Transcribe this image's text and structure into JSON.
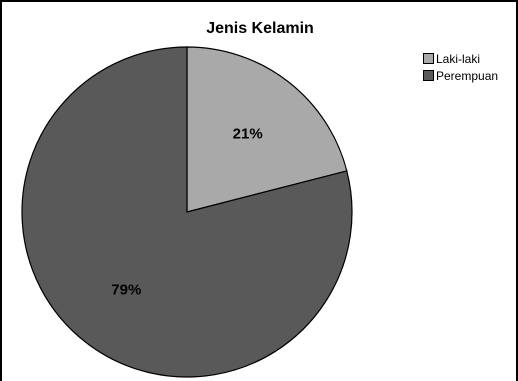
{
  "chart_data": {
    "type": "pie",
    "title": "Jenis Kelamin",
    "categories": [
      "Laki-laki",
      "Perempuan"
    ],
    "values": [
      21,
      79
    ],
    "labels": [
      "21%",
      "79%"
    ],
    "colors": [
      "#a9a9a9",
      "#595959"
    ],
    "legend_position": "right"
  }
}
